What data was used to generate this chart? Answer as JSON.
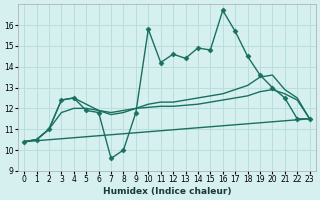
{
  "xlabel": "Humidex (Indice chaleur)",
  "background_color": "#d6f0ef",
  "grid_color": "#b8dedd",
  "line_color": "#1a7060",
  "xlim": [
    -0.5,
    23.5
  ],
  "ylim": [
    9,
    17
  ],
  "yticks": [
    9,
    10,
    11,
    12,
    13,
    14,
    15,
    16
  ],
  "xticks": [
    0,
    1,
    2,
    3,
    4,
    5,
    6,
    7,
    8,
    9,
    10,
    11,
    12,
    13,
    14,
    15,
    16,
    17,
    18,
    19,
    20,
    21,
    22,
    23
  ],
  "series": [
    {
      "x": [
        0,
        1,
        2,
        3,
        4,
        5,
        6,
        7,
        8,
        9,
        10,
        11,
        12,
        13,
        14,
        15,
        16,
        17,
        18,
        19,
        20,
        21,
        22,
        23
      ],
      "y": [
        10.4,
        10.5,
        11.0,
        12.4,
        12.5,
        11.9,
        11.8,
        9.6,
        10.0,
        11.8,
        15.8,
        14.2,
        14.6,
        14.4,
        14.9,
        14.8,
        16.7,
        15.7,
        14.5,
        13.6,
        13.0,
        12.5,
        11.5,
        11.5
      ],
      "marker": "D",
      "markersize": 2.5,
      "linewidth": 1.0
    },
    {
      "x": [
        0,
        1,
        2,
        3,
        4,
        5,
        6,
        7,
        8,
        9,
        10,
        11,
        12,
        13,
        14,
        15,
        16,
        17,
        18,
        19,
        20,
        21,
        22,
        23
      ],
      "y": [
        10.4,
        10.5,
        11.0,
        12.4,
        12.5,
        12.2,
        11.9,
        11.7,
        11.8,
        12.0,
        12.2,
        12.3,
        12.3,
        12.4,
        12.5,
        12.6,
        12.7,
        12.9,
        13.1,
        13.5,
        13.6,
        12.9,
        12.5,
        11.5
      ],
      "marker": "",
      "markersize": 0,
      "linewidth": 1.0
    },
    {
      "x": [
        0,
        1,
        2,
        3,
        4,
        5,
        6,
        7,
        8,
        9,
        10,
        11,
        12,
        13,
        14,
        15,
        16,
        17,
        18,
        19,
        20,
        21,
        22,
        23
      ],
      "y": [
        10.4,
        10.5,
        11.0,
        11.8,
        12.0,
        12.0,
        11.9,
        11.8,
        11.9,
        12.0,
        12.05,
        12.1,
        12.1,
        12.15,
        12.2,
        12.3,
        12.4,
        12.5,
        12.6,
        12.8,
        12.9,
        12.7,
        12.4,
        11.5
      ],
      "marker": "",
      "markersize": 0,
      "linewidth": 1.0
    },
    {
      "x": [
        0,
        23
      ],
      "y": [
        10.4,
        11.5
      ],
      "marker": "",
      "markersize": 0,
      "linewidth": 1.0
    }
  ]
}
